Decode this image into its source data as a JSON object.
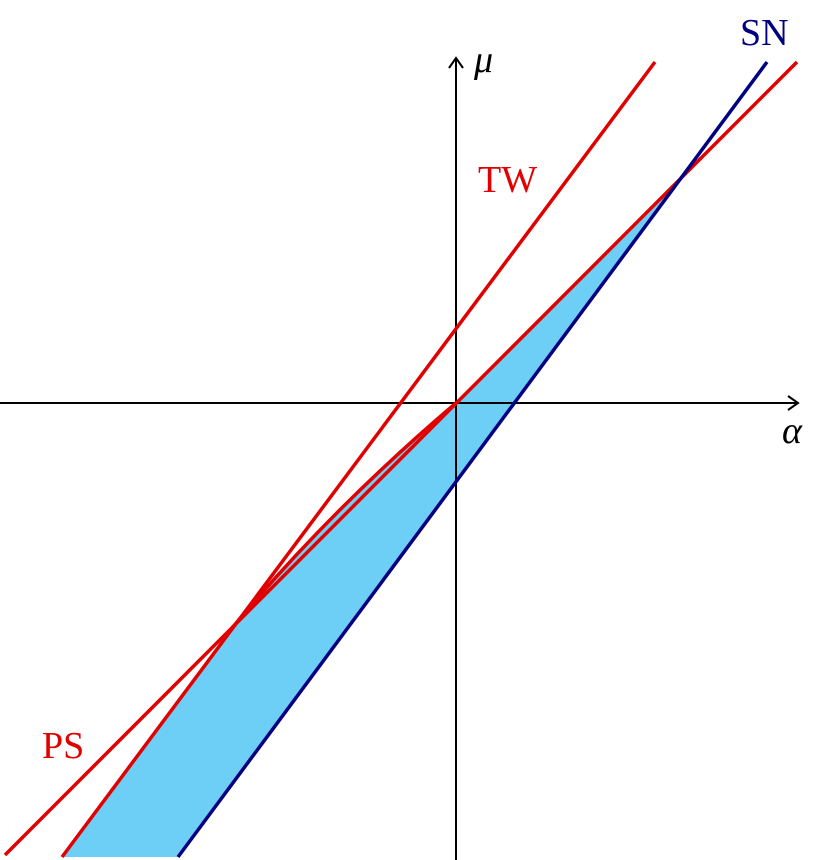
{
  "axes": {
    "x_label": "α",
    "y_label": "μ"
  },
  "curves": {
    "tw": "TW",
    "ps": "PS",
    "sn": "SN"
  }
}
